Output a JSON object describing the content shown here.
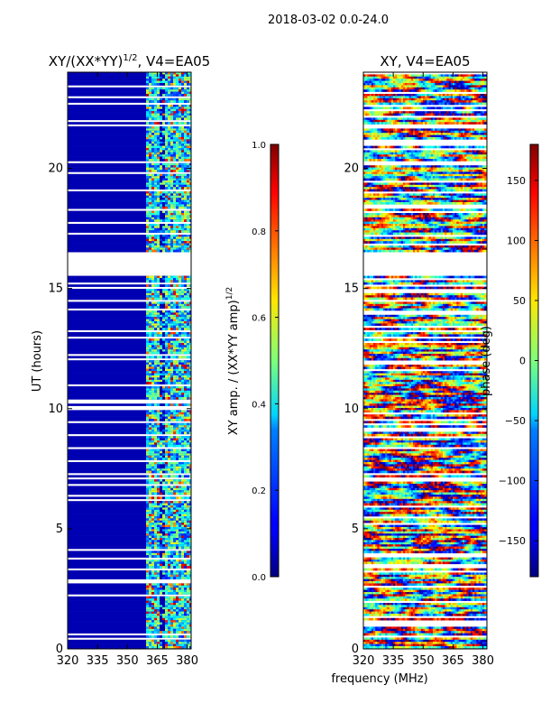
{
  "figure": {
    "suptitle": "2018-03-02 0.0-24.0",
    "xlabel": "frequency (MHz)"
  },
  "chart_data": [
    {
      "type": "heatmap",
      "title": "XY/(XX*YY)^1/2, V4=EA05",
      "title_main": "XY/(XX*YY)",
      "title_exp": "1/2",
      "title_tail": ", V4=EA05",
      "ylabel": "UT (hours)",
      "xlim": [
        320,
        382
      ],
      "ylim": [
        0,
        24
      ],
      "xticks": [
        "320",
        "335",
        "350",
        "365",
        "380"
      ],
      "yticks": [
        "0",
        "5",
        "10",
        "15",
        "20"
      ],
      "xtick_values": [
        320,
        335,
        350,
        365,
        380
      ],
      "ytick_values": [
        0,
        5,
        10,
        15,
        20
      ],
      "gaps_hours": [
        [
          15.6,
          16.6
        ]
      ],
      "colorbar": {
        "label_main": "XY amp. / (XX*YY amp)",
        "label_exp": "1/2",
        "min": 0.0,
        "max": 1.0,
        "ticks": [
          "0.0",
          "0.2",
          "0.4",
          "0.6",
          "0.8",
          "1.0"
        ],
        "tick_values": [
          0.0,
          0.2,
          0.4,
          0.6,
          0.8,
          1.0
        ]
      }
    },
    {
      "type": "heatmap",
      "title": "XY, V4=EA05",
      "ylabel": "",
      "xlim": [
        320,
        382
      ],
      "ylim": [
        0,
        24
      ],
      "xticks": [
        "320",
        "335",
        "350",
        "365",
        "380"
      ],
      "yticks": [
        "0",
        "5",
        "10",
        "15",
        "20"
      ],
      "xtick_values": [
        320,
        335,
        350,
        365,
        380
      ],
      "ytick_values": [
        0,
        5,
        10,
        15,
        20
      ],
      "gaps_hours": [
        [
          15.6,
          16.6
        ]
      ],
      "colorbar": {
        "label": "phase (deg)",
        "min": -180,
        "max": 180,
        "ticks": [
          "−150",
          "−100",
          "−50",
          "0",
          "50",
          "100",
          "150"
        ],
        "tick_values": [
          -150,
          -100,
          -50,
          0,
          50,
          100,
          150
        ]
      }
    }
  ]
}
